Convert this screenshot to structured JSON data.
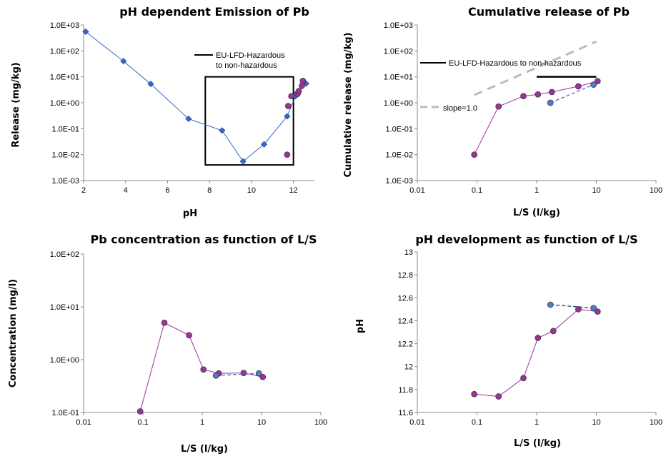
{
  "chart_data": [
    {
      "type": "scatter",
      "title": "pH dependent Emission of Pb",
      "xlabel": "pH",
      "ylabel": "Release (mg/kg)",
      "xscale": "linear",
      "yscale": "log",
      "xlim": [
        2,
        13
      ],
      "ylim": [
        0.001,
        1000
      ],
      "xticks": [
        "2",
        "4",
        "6",
        "8",
        "10",
        "12"
      ],
      "yticks": [
        "1.0E-03",
        "1.0E-02",
        "1.0E-01",
        "1.0E+00",
        "1.0E+01",
        "1.0E+02",
        "1.0E+03"
      ],
      "legend": [
        {
          "label_lines": [
            "EU-LFD-Hazardous",
            "to non-hazardous"
          ],
          "style": "solid",
          "color": "#000000"
        }
      ],
      "box": {
        "x": [
          7.8,
          12.0
        ],
        "y": [
          0.004,
          10
        ]
      },
      "series": [
        {
          "style": "diamond-line",
          "color": "#3366cc",
          "marker": "#3366cc",
          "x": [
            2.1,
            3.9,
            5.2,
            7.0,
            8.6,
            9.6,
            10.6,
            11.7,
            12.1,
            12.2,
            12.6
          ],
          "y": [
            550,
            40,
            5.3,
            0.24,
            0.085,
            0.0055,
            0.025,
            0.3,
            1.8,
            2.5,
            5.5
          ]
        },
        {
          "style": "points",
          "color": "#993399",
          "marker": "#993399",
          "x": [
            11.7,
            11.75,
            11.9,
            12.2,
            12.25,
            12.4,
            12.45
          ],
          "y": [
            0.01,
            0.75,
            1.8,
            2.2,
            2.8,
            4.5,
            7.0
          ]
        }
      ]
    },
    {
      "type": "scatter",
      "title": "Cumulative release of Pb",
      "xlabel": "L/S (l/kg)",
      "ylabel": "Cumulative release (mg/kg)",
      "xscale": "log",
      "yscale": "log",
      "xlim": [
        0.01,
        100
      ],
      "ylim": [
        0.001,
        1000
      ],
      "xticks": [
        "0.01",
        "0.1",
        "1",
        "10",
        "100"
      ],
      "yticks": [
        "1.0E-03",
        "1.0E-02",
        "1.0E-01",
        "1.0E+00",
        "1.0E+01",
        "1.0E+02",
        "1.0E+03"
      ],
      "annotations": [
        "EU-LFD-Hazardous to non-hazardous",
        "slope=1.0"
      ],
      "limit_line": {
        "x": [
          1.0,
          10
        ],
        "y": 10,
        "color": "#000000"
      },
      "slope_line": {
        "x": [
          0.09,
          10
        ],
        "y": [
          2.0,
          230
        ],
        "color": "#bbbbbb"
      },
      "series": [
        {
          "style": "dot-line",
          "color": "#993399",
          "marker": "#993399",
          "x": [
            0.09,
            0.23,
            0.6,
            1.05,
            1.8,
            5.0,
            10.5
          ],
          "y": [
            0.01,
            0.72,
            1.8,
            2.1,
            2.6,
            4.3,
            6.8
          ]
        },
        {
          "style": "dot-dashed",
          "color": "#4a6fc0",
          "marker": "#5577cc",
          "x": [
            1.7,
            9.0
          ],
          "y": [
            1.0,
            5.0
          ]
        }
      ]
    },
    {
      "type": "scatter",
      "title": "Pb concentration as function of L/S",
      "xlabel": "L/S (l/kg)",
      "ylabel": "Concentration (mg/l)",
      "xscale": "log",
      "yscale": "log",
      "xlim": [
        0.01,
        100
      ],
      "ylim": [
        0.1,
        100
      ],
      "xticks": [
        "0.01",
        "0.1",
        "1",
        "10",
        "100"
      ],
      "yticks": [
        "1.0E-01",
        "1.0E+00",
        "1.0E+01",
        "1.0E+02"
      ],
      "series": [
        {
          "style": "dot-line",
          "color": "#993399",
          "marker": "#993399",
          "x": [
            0.09,
            0.23,
            0.6,
            1.05,
            1.9,
            5.0,
            10.5
          ],
          "y": [
            0.105,
            5.0,
            2.9,
            0.65,
            0.55,
            0.56,
            0.47
          ]
        },
        {
          "style": "dot-dashed",
          "color": "#4a6fc0",
          "marker": "#5577cc",
          "x": [
            1.7,
            9.0
          ],
          "y": [
            0.5,
            0.55
          ]
        }
      ]
    },
    {
      "type": "scatter",
      "title": "pH development as function of L/S",
      "xlabel": "L/S (l/kg)",
      "ylabel": "pH",
      "xscale": "log",
      "yscale": "linear",
      "xlim": [
        0.01,
        100
      ],
      "ylim": [
        11.6,
        13
      ],
      "xticks": [
        "0.01",
        "0.1",
        "1",
        "10",
        "100"
      ],
      "yticks": [
        "11.6",
        "11.8",
        "12",
        "12.2",
        "12.4",
        "12.6",
        "12.8",
        "13"
      ],
      "series": [
        {
          "style": "dot-line",
          "color": "#993399",
          "marker": "#993399",
          "x": [
            0.09,
            0.23,
            0.6,
            1.05,
            1.9,
            5.0,
            10.5
          ],
          "y": [
            11.76,
            11.74,
            11.9,
            12.25,
            12.31,
            12.5,
            12.48
          ]
        },
        {
          "style": "dot-dashed",
          "color": "#22337a",
          "marker": "#5577cc",
          "x": [
            1.7,
            9.0
          ],
          "y": [
            12.54,
            12.51
          ]
        }
      ]
    }
  ]
}
